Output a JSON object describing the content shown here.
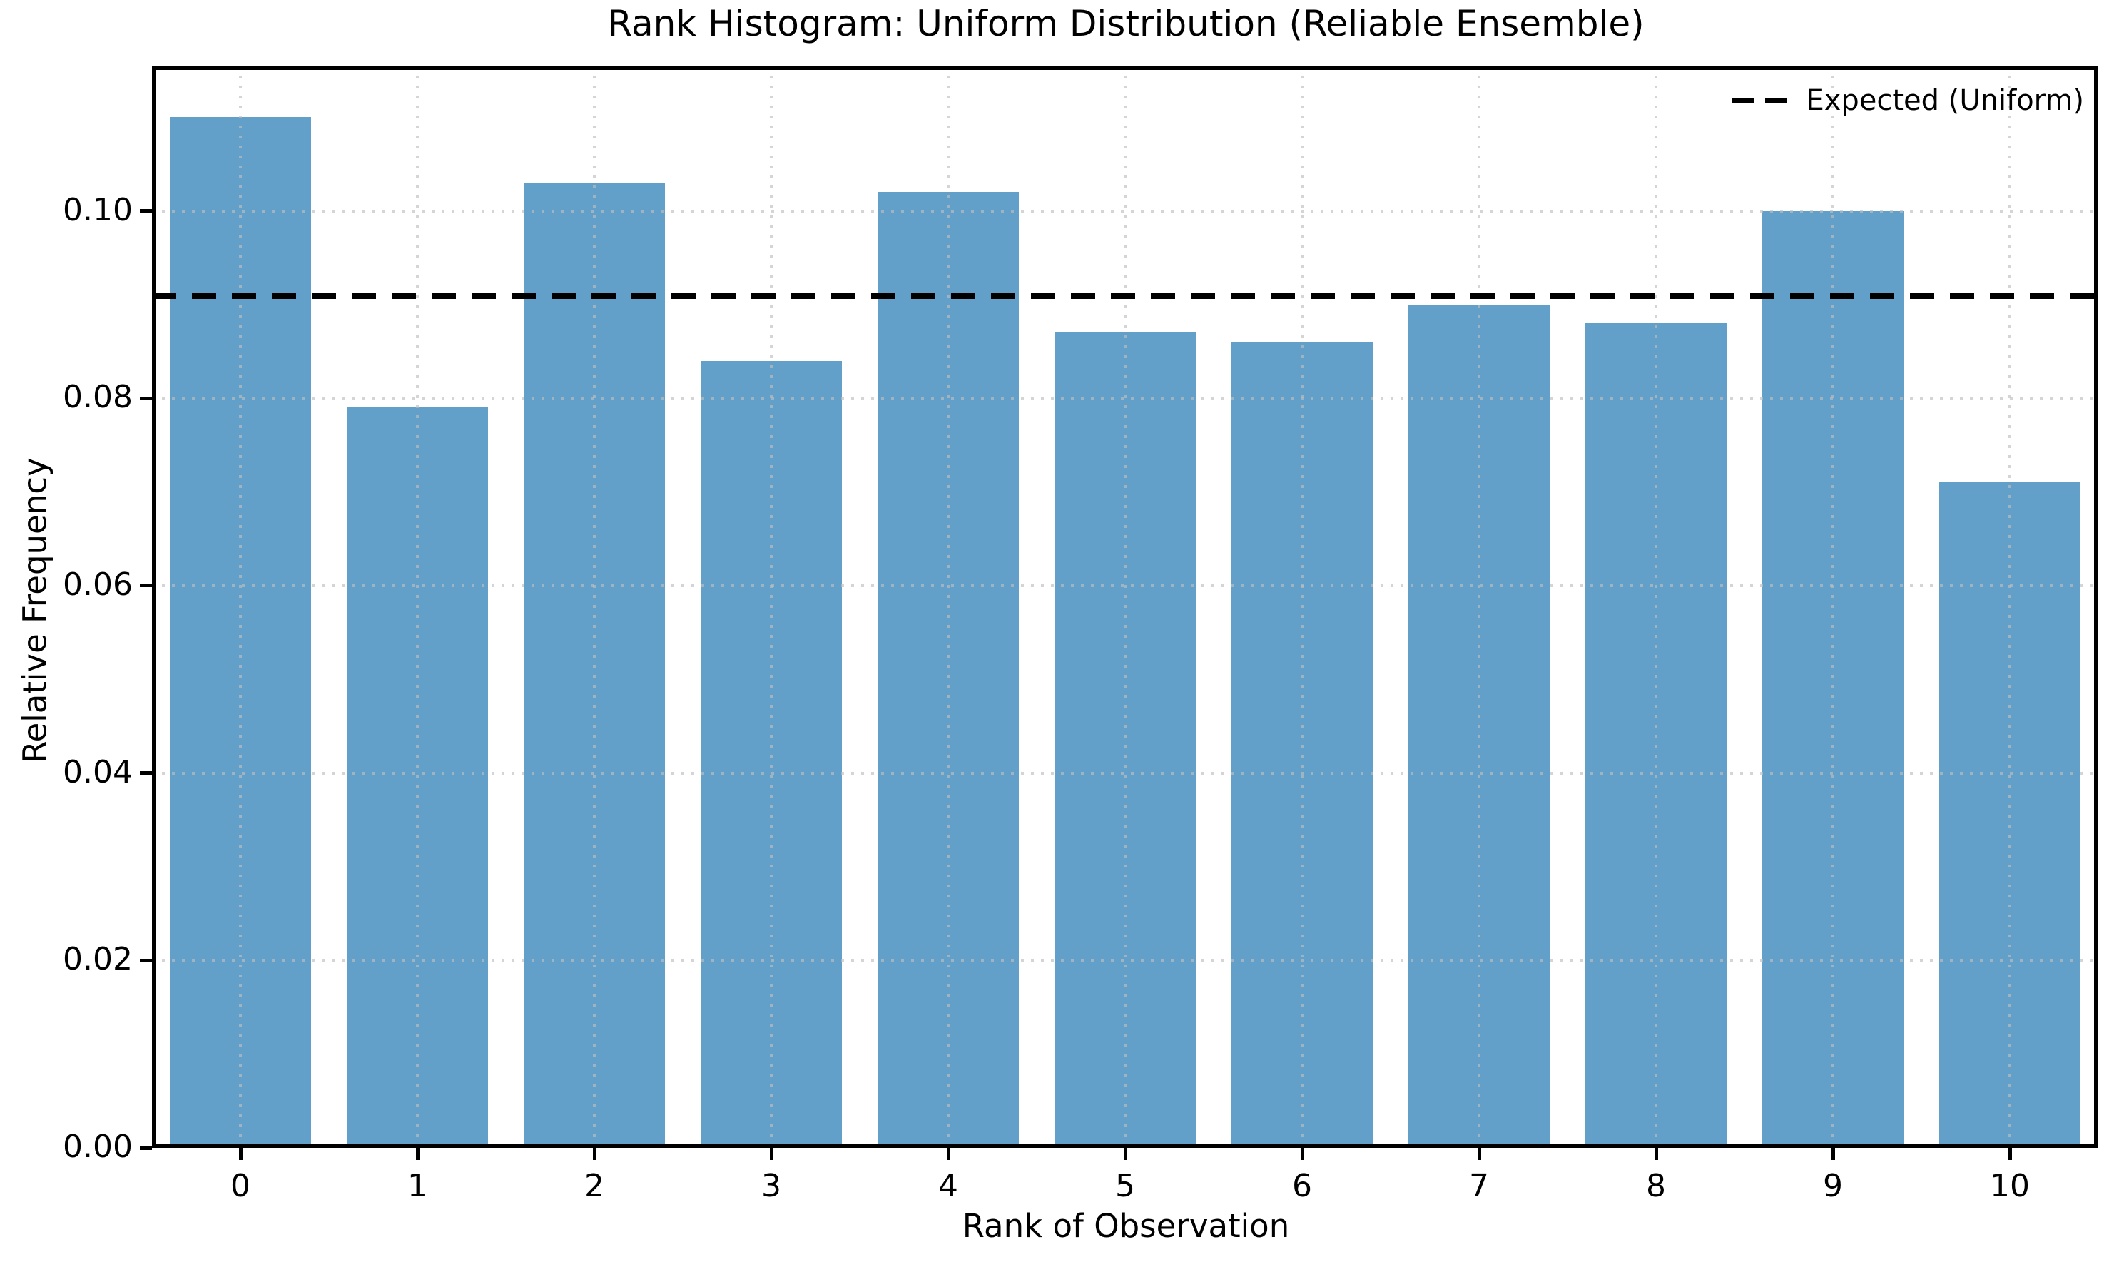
{
  "chart_data": {
    "type": "bar",
    "title": "Rank Histogram: Uniform Distribution (Reliable Ensemble)",
    "xlabel": "Rank of Observation",
    "ylabel": "Relative Frequency",
    "categories": [
      "0",
      "1",
      "2",
      "3",
      "4",
      "5",
      "6",
      "7",
      "8",
      "9",
      "10"
    ],
    "values": [
      0.11,
      0.079,
      0.103,
      0.084,
      0.102,
      0.087,
      0.086,
      0.09,
      0.088,
      0.1,
      0.071
    ],
    "yticks": [
      0.0,
      0.02,
      0.04,
      0.06,
      0.08,
      0.1
    ],
    "ytick_labels": [
      "0.00",
      "0.02",
      "0.04",
      "0.06",
      "0.08",
      "0.10"
    ],
    "ylim": [
      0,
      0.1155
    ],
    "bar_color": "#62A0CA",
    "bar_width_ratio": 0.8,
    "grid": true,
    "grid_color": "#BEBEBE",
    "grid_style": "dotted",
    "expected_line": {
      "value": 0.0909,
      "label": "Expected (Uniform)",
      "color": "#000000",
      "style": "dashed"
    },
    "legend": {
      "position": "upper right",
      "entries": [
        {
          "label": "Expected (Uniform)",
          "marker": "dashed-line",
          "color": "#000000"
        }
      ]
    }
  }
}
